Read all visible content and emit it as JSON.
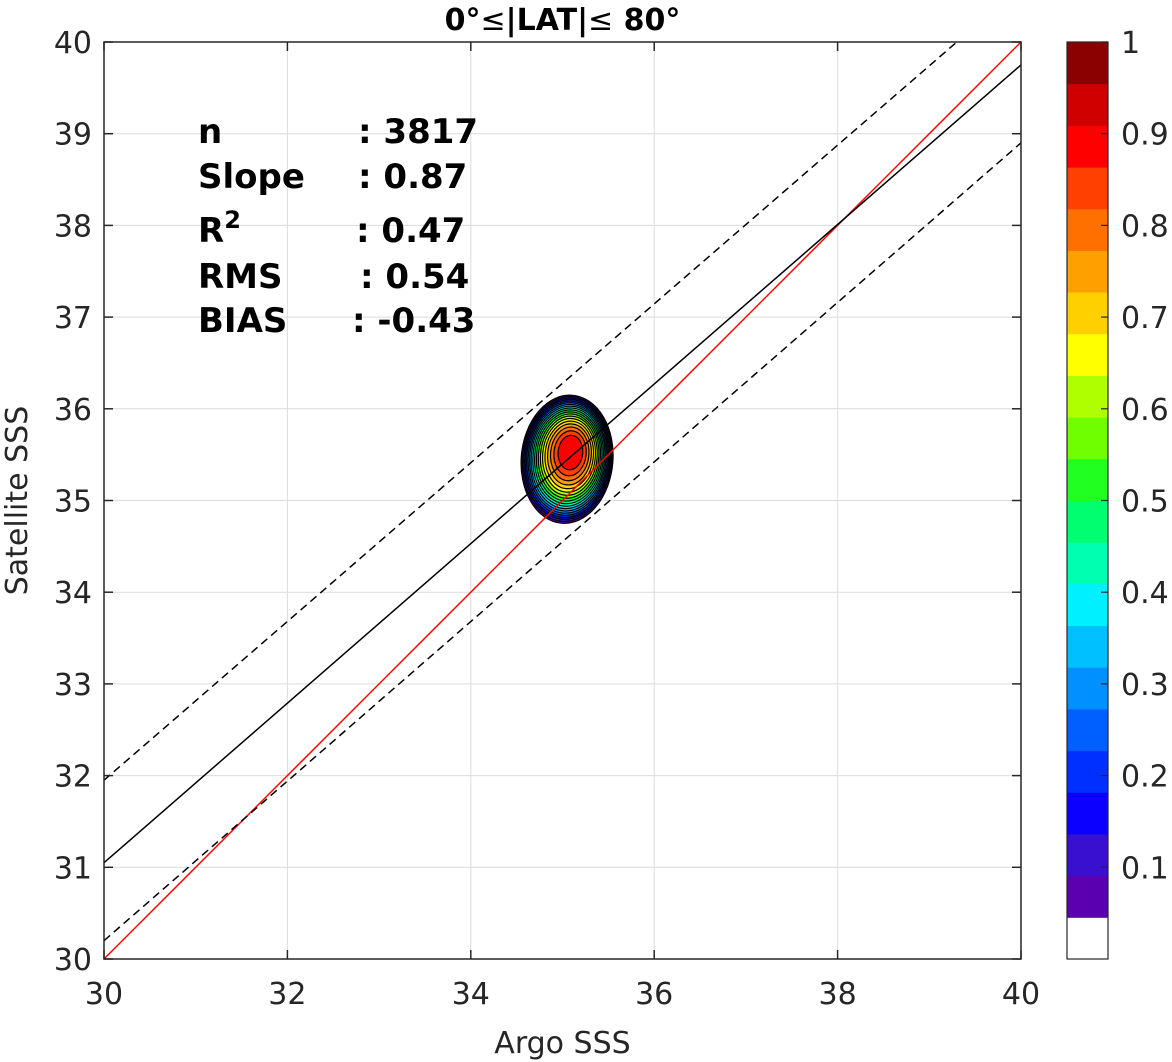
{
  "chart_data": {
    "type": "contour",
    "title_prefix": "0°",
    "title_mid": "|LAT|",
    "title_suffix": " 80°",
    "xlabel": "Argo SSS",
    "ylabel": "Satellite SSS",
    "xlim": [
      30,
      40
    ],
    "ylim": [
      30,
      40
    ],
    "xticks": [
      30,
      32,
      34,
      36,
      38,
      40
    ],
    "yticks": [
      30,
      31,
      32,
      33,
      34,
      35,
      36,
      37,
      38,
      39,
      40
    ],
    "grid": true,
    "stats": [
      {
        "label": "n",
        "value": ": 3817"
      },
      {
        "label": "Slope",
        "value": ": 0.87"
      },
      {
        "label": "R",
        "sup": "2",
        "value": ": 0.47"
      },
      {
        "label": "RMS",
        "value": ": 0.54"
      },
      {
        "label": "BIAS",
        "value": ": -0.43"
      }
    ],
    "lines": [
      {
        "name": "one-to-one",
        "color": "#ff0000",
        "style": "solid",
        "x": [
          30,
          40
        ],
        "y": [
          30,
          40
        ]
      },
      {
        "name": "regression",
        "color": "#000000",
        "style": "solid",
        "x": [
          30,
          40
        ],
        "y": [
          31.05,
          39.75
        ]
      },
      {
        "name": "upper-bound",
        "color": "#000000",
        "style": "dashed",
        "x": [
          30,
          39.3
        ],
        "y": [
          31.95,
          40
        ]
      },
      {
        "name": "lower-bound",
        "color": "#000000",
        "style": "dashed",
        "x": [
          30,
          40
        ],
        "y": [
          30.2,
          38.9
        ]
      }
    ],
    "density": {
      "center_x": 35.05,
      "center_y": 35.45,
      "max_x": 35.1,
      "max_y": 35.55
    },
    "contour_levels": [
      0.05,
      0.1,
      0.15,
      0.2,
      0.25,
      0.3,
      0.35,
      0.4,
      0.45,
      0.5,
      0.55,
      0.6,
      0.65,
      0.7,
      0.75,
      0.8,
      0.85,
      0.9,
      0.95
    ],
    "colorbar": {
      "ticks": [
        "0.1",
        "0.2",
        "0.3",
        "0.4",
        "0.5",
        "0.6",
        "0.7",
        "0.8",
        "0.9",
        "1"
      ],
      "tick_values": [
        0.1,
        0.2,
        0.3,
        0.4,
        0.5,
        0.6,
        0.7,
        0.8,
        0.9,
        1.0
      ],
      "colors": [
        "#ffffff",
        "#5a00b0",
        "#3a10d0",
        "#0b00ff",
        "#0030ff",
        "#0060ff",
        "#0090ff",
        "#00c0ff",
        "#00f0ff",
        "#00ffb0",
        "#00ff70",
        "#20ff20",
        "#70ff00",
        "#b0ff00",
        "#ffff00",
        "#ffd000",
        "#ffa000",
        "#ff7000",
        "#ff4000",
        "#ff0000",
        "#d00000",
        "#8b0000"
      ]
    }
  }
}
